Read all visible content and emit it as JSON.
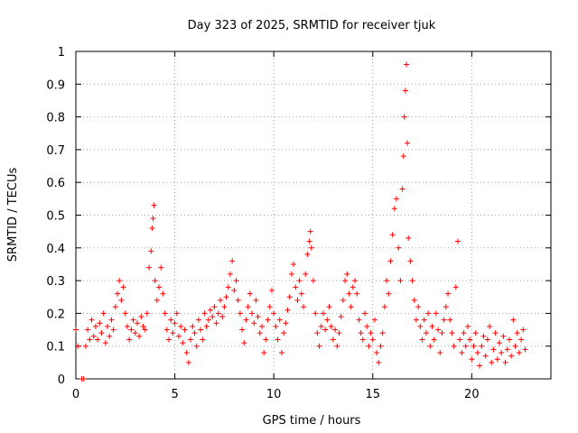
{
  "chart_data": {
    "type": "scatter",
    "title": "Day 323 of 2025, SRMTID for receiver tjuk",
    "xlabel": "GPS time / hours",
    "ylabel": "SRMTID / TECUs",
    "xlim": [
      0,
      24
    ],
    "ylim": [
      0,
      1
    ],
    "xticks": [
      0,
      5,
      10,
      15,
      20
    ],
    "yticks": [
      0,
      0.1,
      0.2,
      0.3,
      0.4,
      0.5,
      0.6,
      0.7,
      0.8,
      0.9,
      1
    ],
    "xtick_labels": [
      "0",
      "5",
      "10",
      "15",
      "20"
    ],
    "ytick_labels": [
      "0",
      "0.1",
      "0.2",
      "0.3",
      "0.4",
      "0.5",
      "0.6",
      "0.7",
      "0.8",
      "0.9",
      "1"
    ],
    "grid": true,
    "marker": "+",
    "color": "#ff0000",
    "series": [
      {
        "name": "SRMTID",
        "points": [
          [
            0.0,
            0.15
          ],
          [
            0.1,
            0.1
          ],
          [
            0.3,
            0.0
          ],
          [
            0.4,
            0.0
          ],
          [
            0.5,
            0.1
          ],
          [
            0.6,
            0.15
          ],
          [
            0.7,
            0.12
          ],
          [
            0.8,
            0.18
          ],
          [
            0.9,
            0.13
          ],
          [
            1.0,
            0.16
          ],
          [
            1.1,
            0.12
          ],
          [
            1.2,
            0.17
          ],
          [
            1.3,
            0.14
          ],
          [
            1.4,
            0.2
          ],
          [
            1.5,
            0.11
          ],
          [
            1.6,
            0.16
          ],
          [
            1.7,
            0.13
          ],
          [
            1.8,
            0.18
          ],
          [
            1.9,
            0.15
          ],
          [
            2.0,
            0.22
          ],
          [
            2.1,
            0.26
          ],
          [
            2.2,
            0.3
          ],
          [
            2.3,
            0.24
          ],
          [
            2.4,
            0.28
          ],
          [
            2.5,
            0.2
          ],
          [
            2.6,
            0.16
          ],
          [
            2.7,
            0.12
          ],
          [
            2.8,
            0.15
          ],
          [
            2.9,
            0.18
          ],
          [
            3.0,
            0.14
          ],
          [
            3.1,
            0.17
          ],
          [
            3.2,
            0.13
          ],
          [
            3.3,
            0.19
          ],
          [
            3.4,
            0.16
          ],
          [
            3.5,
            0.15
          ],
          [
            3.6,
            0.2
          ],
          [
            3.7,
            0.34
          ],
          [
            3.8,
            0.39
          ],
          [
            3.85,
            0.46
          ],
          [
            3.9,
            0.49
          ],
          [
            3.95,
            0.53
          ],
          [
            4.0,
            0.3
          ],
          [
            4.1,
            0.24
          ],
          [
            4.2,
            0.28
          ],
          [
            4.3,
            0.34
          ],
          [
            4.4,
            0.26
          ],
          [
            4.5,
            0.2
          ],
          [
            4.6,
            0.15
          ],
          [
            4.7,
            0.12
          ],
          [
            4.8,
            0.18
          ],
          [
            4.9,
            0.14
          ],
          [
            5.0,
            0.17
          ],
          [
            5.1,
            0.2
          ],
          [
            5.2,
            0.13
          ],
          [
            5.3,
            0.16
          ],
          [
            5.4,
            0.11
          ],
          [
            5.5,
            0.15
          ],
          [
            5.6,
            0.08
          ],
          [
            5.7,
            0.05
          ],
          [
            5.8,
            0.12
          ],
          [
            5.9,
            0.16
          ],
          [
            6.0,
            0.14
          ],
          [
            6.1,
            0.1
          ],
          [
            6.2,
            0.18
          ],
          [
            6.3,
            0.15
          ],
          [
            6.4,
            0.12
          ],
          [
            6.5,
            0.2
          ],
          [
            6.6,
            0.16
          ],
          [
            6.7,
            0.18
          ],
          [
            6.8,
            0.21
          ],
          [
            6.9,
            0.19
          ],
          [
            7.0,
            0.22
          ],
          [
            7.1,
            0.17
          ],
          [
            7.2,
            0.2
          ],
          [
            7.3,
            0.24
          ],
          [
            7.4,
            0.19
          ],
          [
            7.5,
            0.22
          ],
          [
            7.6,
            0.25
          ],
          [
            7.7,
            0.28
          ],
          [
            7.8,
            0.32
          ],
          [
            7.9,
            0.36
          ],
          [
            8.0,
            0.27
          ],
          [
            8.1,
            0.3
          ],
          [
            8.2,
            0.24
          ],
          [
            8.3,
            0.2
          ],
          [
            8.4,
            0.15
          ],
          [
            8.5,
            0.11
          ],
          [
            8.6,
            0.18
          ],
          [
            8.7,
            0.22
          ],
          [
            8.8,
            0.26
          ],
          [
            8.9,
            0.2
          ],
          [
            9.0,
            0.17
          ],
          [
            9.1,
            0.24
          ],
          [
            9.2,
            0.19
          ],
          [
            9.3,
            0.14
          ],
          [
            9.4,
            0.16
          ],
          [
            9.5,
            0.08
          ],
          [
            9.6,
            0.12
          ],
          [
            9.7,
            0.18
          ],
          [
            9.8,
            0.22
          ],
          [
            9.9,
            0.27
          ],
          [
            10.0,
            0.2
          ],
          [
            10.1,
            0.16
          ],
          [
            10.2,
            0.12
          ],
          [
            10.3,
            0.18
          ],
          [
            10.4,
            0.08
          ],
          [
            10.5,
            0.14
          ],
          [
            10.6,
            0.17
          ],
          [
            10.7,
            0.21
          ],
          [
            10.8,
            0.25
          ],
          [
            10.9,
            0.32
          ],
          [
            11.0,
            0.35
          ],
          [
            11.1,
            0.28
          ],
          [
            11.2,
            0.24
          ],
          [
            11.3,
            0.3
          ],
          [
            11.4,
            0.26
          ],
          [
            11.5,
            0.22
          ],
          [
            11.6,
            0.32
          ],
          [
            11.7,
            0.38
          ],
          [
            11.8,
            0.42
          ],
          [
            11.85,
            0.45
          ],
          [
            11.9,
            0.4
          ],
          [
            12.0,
            0.3
          ],
          [
            12.1,
            0.2
          ],
          [
            12.2,
            0.14
          ],
          [
            12.3,
            0.1
          ],
          [
            12.4,
            0.16
          ],
          [
            12.5,
            0.2
          ],
          [
            12.6,
            0.15
          ],
          [
            12.7,
            0.18
          ],
          [
            12.8,
            0.22
          ],
          [
            12.9,
            0.16
          ],
          [
            13.0,
            0.12
          ],
          [
            13.1,
            0.15
          ],
          [
            13.2,
            0.1
          ],
          [
            13.3,
            0.14
          ],
          [
            13.4,
            0.19
          ],
          [
            13.5,
            0.24
          ],
          [
            13.6,
            0.3
          ],
          [
            13.7,
            0.32
          ],
          [
            13.8,
            0.26
          ],
          [
            13.9,
            0.22
          ],
          [
            14.0,
            0.28
          ],
          [
            14.1,
            0.3
          ],
          [
            14.2,
            0.26
          ],
          [
            14.3,
            0.18
          ],
          [
            14.4,
            0.14
          ],
          [
            14.5,
            0.12
          ],
          [
            14.6,
            0.2
          ],
          [
            14.7,
            0.16
          ],
          [
            14.8,
            0.1
          ],
          [
            14.9,
            0.14
          ],
          [
            15.0,
            0.12
          ],
          [
            15.1,
            0.18
          ],
          [
            15.2,
            0.08
          ],
          [
            15.3,
            0.05
          ],
          [
            15.4,
            0.1
          ],
          [
            15.5,
            0.14
          ],
          [
            15.6,
            0.22
          ],
          [
            15.7,
            0.3
          ],
          [
            15.8,
            0.26
          ],
          [
            15.9,
            0.36
          ],
          [
            16.0,
            0.44
          ],
          [
            16.1,
            0.52
          ],
          [
            16.2,
            0.55
          ],
          [
            16.3,
            0.4
          ],
          [
            16.4,
            0.3
          ],
          [
            16.5,
            0.58
          ],
          [
            16.55,
            0.68
          ],
          [
            16.6,
            0.8
          ],
          [
            16.65,
            0.88
          ],
          [
            16.7,
            0.96
          ],
          [
            16.75,
            0.72
          ],
          [
            16.8,
            0.43
          ],
          [
            16.9,
            0.36
          ],
          [
            17.0,
            0.3
          ],
          [
            17.1,
            0.24
          ],
          [
            17.2,
            0.18
          ],
          [
            17.3,
            0.22
          ],
          [
            17.4,
            0.16
          ],
          [
            17.5,
            0.12
          ],
          [
            17.6,
            0.18
          ],
          [
            17.7,
            0.14
          ],
          [
            17.8,
            0.2
          ],
          [
            17.9,
            0.1
          ],
          [
            18.0,
            0.16
          ],
          [
            18.1,
            0.12
          ],
          [
            18.2,
            0.2
          ],
          [
            18.3,
            0.15
          ],
          [
            18.4,
            0.08
          ],
          [
            18.5,
            0.14
          ],
          [
            18.6,
            0.18
          ],
          [
            18.7,
            0.22
          ],
          [
            18.8,
            0.26
          ],
          [
            18.9,
            0.18
          ],
          [
            19.0,
            0.14
          ],
          [
            19.1,
            0.1
          ],
          [
            19.2,
            0.28
          ],
          [
            19.3,
            0.42
          ],
          [
            19.4,
            0.12
          ],
          [
            19.5,
            0.08
          ],
          [
            19.6,
            0.14
          ],
          [
            19.7,
            0.1
          ],
          [
            19.8,
            0.16
          ],
          [
            19.9,
            0.12
          ],
          [
            20.0,
            0.06
          ],
          [
            20.1,
            0.1
          ],
          [
            20.2,
            0.14
          ],
          [
            20.3,
            0.08
          ],
          [
            20.4,
            0.04
          ],
          [
            20.5,
            0.1
          ],
          [
            20.6,
            0.13
          ],
          [
            20.7,
            0.07
          ],
          [
            20.8,
            0.12
          ],
          [
            20.9,
            0.16
          ],
          [
            21.0,
            0.05
          ],
          [
            21.1,
            0.09
          ],
          [
            21.2,
            0.14
          ],
          [
            21.3,
            0.06
          ],
          [
            21.4,
            0.11
          ],
          [
            21.5,
            0.08
          ],
          [
            21.6,
            0.13
          ],
          [
            21.7,
            0.05
          ],
          [
            21.8,
            0.09
          ],
          [
            21.9,
            0.12
          ],
          [
            22.0,
            0.07
          ],
          [
            22.1,
            0.18
          ],
          [
            22.2,
            0.1
          ],
          [
            22.3,
            0.14
          ],
          [
            22.4,
            0.08
          ],
          [
            22.5,
            0.12
          ],
          [
            22.6,
            0.15
          ],
          [
            22.7,
            0.09
          ]
        ]
      }
    ]
  }
}
